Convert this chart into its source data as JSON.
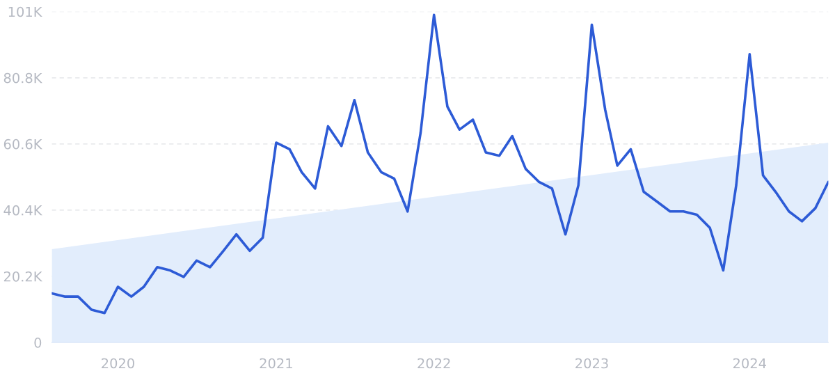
{
  "chart_data": {
    "type": "line",
    "xlim": [
      "2019-08",
      "2024-07"
    ],
    "xticks": [
      "2020",
      "2021",
      "2022",
      "2023",
      "2024"
    ],
    "ylim": [
      0,
      101000
    ],
    "yticks": [
      0,
      {
        "value": 20200,
        "label": "20.2K"
      },
      {
        "value": 40400,
        "label": "40.4K"
      },
      {
        "value": 60600,
        "label": "60.6K"
      },
      {
        "value": 80800,
        "label": "80.8K"
      },
      {
        "value": 101000,
        "label": "101K"
      }
    ],
    "grid": "y",
    "legend": false,
    "marker": "none",
    "line_style": "solid",
    "series": [
      {
        "type": "area",
        "color": "#e2edfc",
        "x": [
          "2019-08",
          "2024-07"
        ],
        "values": [
          28500,
          61000
        ]
      },
      {
        "type": "line",
        "color": "#2d5bd6",
        "x": [
          "2019-08",
          "2019-09",
          "2019-10",
          "2019-11",
          "2019-12",
          "2020-01",
          "2020-02",
          "2020-03",
          "2020-04",
          "2020-05",
          "2020-06",
          "2020-07",
          "2020-08",
          "2020-09",
          "2020-10",
          "2020-11",
          "2020-12",
          "2021-01",
          "2021-02",
          "2021-03",
          "2021-04",
          "2021-05",
          "2021-06",
          "2021-07",
          "2021-08",
          "2021-09",
          "2021-10",
          "2021-11",
          "2021-12",
          "2022-01",
          "2022-02",
          "2022-03",
          "2022-04",
          "2022-05",
          "2022-06",
          "2022-07",
          "2022-08",
          "2022-09",
          "2022-10",
          "2022-11",
          "2022-12",
          "2023-01",
          "2023-02",
          "2023-03",
          "2023-04",
          "2023-05",
          "2023-06",
          "2023-07",
          "2023-08",
          "2023-09",
          "2023-10",
          "2023-11",
          "2023-12",
          "2024-01",
          "2024-02",
          "2024-03",
          "2024-04",
          "2024-05",
          "2024-06",
          "2024-07"
        ],
        "values": [
          15000,
          14000,
          14000,
          10000,
          9000,
          17000,
          14000,
          17000,
          23000,
          22000,
          20000,
          25000,
          23000,
          28000,
          33000,
          28000,
          32000,
          61000,
          59000,
          52000,
          47000,
          66000,
          60000,
          74000,
          58000,
          52000,
          50000,
          40000,
          64000,
          100000,
          72000,
          65000,
          68000,
          58000,
          57000,
          63000,
          53000,
          49000,
          47000,
          33000,
          48000,
          97000,
          71000,
          54000,
          59000,
          46000,
          43000,
          40000,
          40000,
          39000,
          35000,
          22000,
          48000,
          88000,
          51000,
          46000,
          40000,
          37000,
          41000,
          49000
        ]
      }
    ]
  }
}
